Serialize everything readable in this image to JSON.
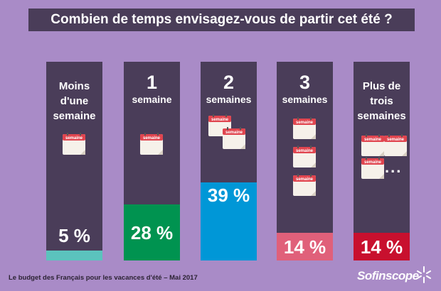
{
  "title": "Combien de temps envisagez-vous de partir cet été ?",
  "calendar_label": "semaine",
  "ellipsis": "...",
  "footer": "Le budget des Français pour les vacances d'été – Mai 2017",
  "brand": "Sofinscope",
  "colors": {
    "background": "#a98bc7",
    "column": "#4a3d59",
    "calendar_header": "#e0454f",
    "calendar_body": "#f6f1ea"
  },
  "chart_data": {
    "type": "bar",
    "categories": [
      "Moins d'une semaine",
      "1 semaine",
      "2 semaines",
      "3 semaines",
      "Plus de trois semaines"
    ],
    "values": [
      5,
      28,
      39,
      14,
      14
    ],
    "value_labels": [
      "5 %",
      "28 %",
      "39 %",
      "14 %",
      "14 %"
    ],
    "colors": [
      "#5bc3bd",
      "#009350",
      "#0097d7",
      "#e0607a",
      "#c8102e"
    ],
    "ylim": [
      0,
      100
    ]
  }
}
